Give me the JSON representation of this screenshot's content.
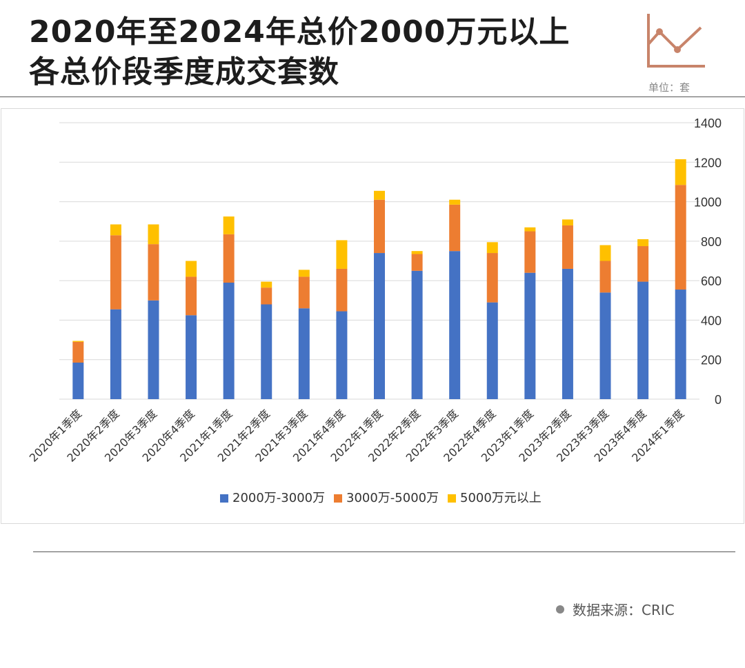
{
  "title": {
    "line1": "2020年至2024年总价2000万元以上",
    "line2": "各总价段季度成交套数"
  },
  "unit_label": "单位：套",
  "source": {
    "label": "数据来源：CRIC"
  },
  "icons": {
    "logo": "line-chart-icon",
    "source_bullet": "bullet-dot-icon"
  },
  "colors": {
    "series1": "#4472C4",
    "series2": "#ED7D31",
    "series3": "#FFC000",
    "logo": "#C8846A",
    "grid": "#D9D9D9"
  },
  "chart_data": {
    "type": "bar",
    "stacked": true,
    "title": "2020年至2024年总价2000万元以上各总价段季度成交套数",
    "categories": [
      "2020年1季度",
      "2020年2季度",
      "2020年3季度",
      "2020年4季度",
      "2021年1季度",
      "2021年2季度",
      "2021年3季度",
      "2021年4季度",
      "2022年1季度",
      "2022年2季度",
      "2022年3季度",
      "2022年4季度",
      "2023年1季度",
      "2023年2季度",
      "2023年3季度",
      "2023年4季度",
      "2024年1季度"
    ],
    "series": [
      {
        "name": "2000万-3000万",
        "values": [
          185,
          455,
          500,
          425,
          590,
          480,
          460,
          445,
          740,
          650,
          750,
          490,
          640,
          660,
          540,
          595,
          555
        ]
      },
      {
        "name": "3000万-5000万",
        "values": [
          105,
          375,
          285,
          195,
          245,
          85,
          160,
          215,
          270,
          85,
          235,
          250,
          210,
          220,
          160,
          180,
          530
        ]
      },
      {
        "name": "5000万元以上",
        "values": [
          5,
          55,
          100,
          80,
          90,
          30,
          35,
          145,
          45,
          15,
          25,
          55,
          20,
          30,
          80,
          35,
          130
        ]
      }
    ],
    "ylim": [
      0,
      1400
    ],
    "yticks": [
      "0",
      "200",
      "400",
      "600",
      "800",
      "1000",
      "1200",
      "1400"
    ],
    "y_axis_position": "right",
    "legend_position": "bottom",
    "grid": true,
    "xlabel": "",
    "ylabel": ""
  }
}
